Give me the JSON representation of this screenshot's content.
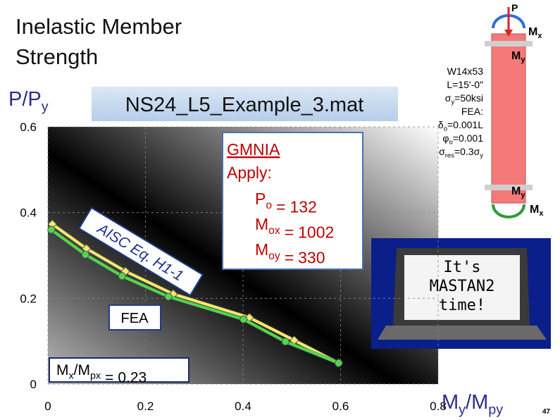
{
  "chart_data": {
    "type": "line",
    "title": "Inelastic Member Strength",
    "subtitle": "NS24_L5_Example_3.mat",
    "y_label": [
      "P/P",
      "y"
    ],
    "x_label": [
      "M",
      "y",
      "/M",
      "py"
    ],
    "xlim": [
      0,
      0.8
    ],
    "ylim": [
      0,
      0.6
    ],
    "xticks": [
      0,
      0.2,
      0.4,
      0.6,
      0.8
    ],
    "yticks": [
      0,
      0.2,
      0.4,
      0.6
    ],
    "grid": true,
    "series": [
      {
        "name": "AISC Eq. H1-1",
        "color": "#f7e96a",
        "marker": "diamond",
        "x": [
          0.009,
          0.079,
          0.159,
          0.257,
          0.413,
          0.505,
          0.596
        ],
        "values": [
          0.373,
          0.316,
          0.263,
          0.21,
          0.155,
          0.102,
          0.049
        ]
      },
      {
        "name": "FEA",
        "color": "#4fd84f",
        "marker": "circle",
        "x": [
          0.007,
          0.077,
          0.152,
          0.247,
          0.401,
          0.487,
          0.596
        ],
        "values": [
          0.36,
          0.302,
          0.252,
          0.204,
          0.151,
          0.099,
          0.049
        ]
      }
    ],
    "analysis_box": {
      "heading": "GMNIA",
      "subheading": "Apply:",
      "loads": [
        {
          "symbol": [
            "P",
            "o"
          ],
          "eq": "=",
          "value": 132
        },
        {
          "symbol": [
            "M",
            "ox"
          ],
          "eq": "=",
          "value": 1002
        },
        {
          "symbol": [
            "M",
            "oy"
          ],
          "eq": "=",
          "value": 330
        }
      ]
    },
    "moment_ratio": {
      "symbol": [
        "M",
        "x",
        "/M",
        "px"
      ],
      "eq": "=",
      "value": 0.23
    },
    "member_props": [
      [
        "W14x53"
      ],
      [
        "L=15'-0\""
      ],
      [
        "σ",
        "y",
        "=50ksi"
      ],
      [
        "FEA:"
      ],
      [
        "δ",
        "o",
        "=0.001L"
      ],
      [
        "φ",
        "o",
        "=0.001"
      ],
      [
        "σ",
        "res",
        "=0.3σ",
        "y"
      ]
    ],
    "diagram_labels": {
      "load": "P",
      "moment_top_x": [
        "M",
        "x"
      ],
      "moment_top_y": [
        "M",
        "y"
      ],
      "moment_bottom_y": [
        "M",
        "y"
      ],
      "moment_bottom_x": [
        "M",
        "x"
      ]
    },
    "laptop_text": [
      "It's",
      "MASTAN2",
      "time!"
    ],
    "slide_number": "47"
  }
}
